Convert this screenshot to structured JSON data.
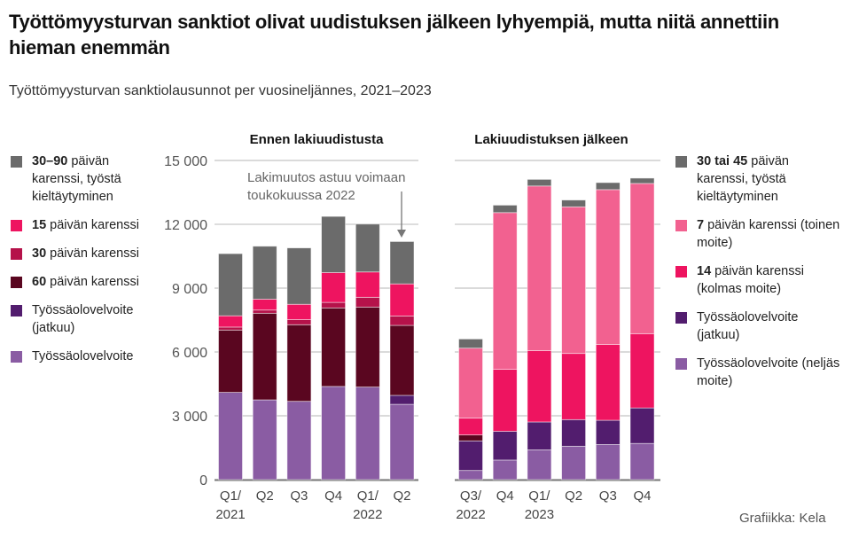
{
  "title": "Työttömyysturvan sanktiot olivat uudistuksen jälkeen lyhyempiä, mutta niitä annettiin hieman enemmän",
  "subtitle": "Työttömyysturvan sanktiolausunnot per vuosineljännes, 2021–2023",
  "credit": "Grafiikka: Kela",
  "annotation": [
    "Lakimuutos astuu voimaan",
    "toukokuussa 2022"
  ],
  "chart_data": [
    {
      "type": "bar",
      "stacked": true,
      "title": "Ennen lakiuudistusta",
      "categories": [
        [
          "Q1/",
          "2021"
        ],
        [
          "Q2",
          ""
        ],
        [
          "Q3",
          ""
        ],
        [
          "Q4",
          ""
        ],
        [
          "Q1/",
          "2022"
        ],
        [
          "Q2",
          ""
        ]
      ],
      "ylim": [
        0,
        15000
      ],
      "yticks": [
        0,
        3000,
        6000,
        9000,
        12000,
        15000
      ],
      "ytick_labels": [
        "0",
        "3 000",
        "6 000",
        "9 000",
        "12 000",
        "15 000"
      ],
      "grid": true,
      "legend_position": "left",
      "series": [
        {
          "name_bold": "",
          "name": "Työssäolovelvoite",
          "color": "#8a5ca3",
          "values": [
            4100,
            3750,
            3680,
            4380,
            4350,
            3540
          ]
        },
        {
          "name_bold": "",
          "name": "Työssäolovelvoite (jatkuu)",
          "color": "#521d6e",
          "values": [
            0,
            0,
            0,
            0,
            0,
            420
          ]
        },
        {
          "name_bold": "60",
          "name": "päivän karenssi",
          "color": "#5a0620",
          "values": [
            2930,
            4070,
            3600,
            3690,
            3760,
            3290
          ]
        },
        {
          "name_bold": "30",
          "name": "päivän karenssi",
          "color": "#b5124a",
          "values": [
            140,
            150,
            240,
            260,
            460,
            440
          ]
        },
        {
          "name_bold": "15",
          "name": "päivän karenssi",
          "color": "#ee1460",
          "values": [
            530,
            510,
            720,
            1400,
            1190,
            1510
          ]
        },
        {
          "name_bold": "30–90",
          "name": "päivän karenssi, työstä kieltäytyminen",
          "color": "#6b6b6b",
          "values": [
            2920,
            2490,
            2650,
            2640,
            2250,
            1990
          ]
        }
      ]
    },
    {
      "type": "bar",
      "stacked": true,
      "title": "Lakiuudistuksen jälkeen",
      "categories": [
        [
          "Q3/",
          "2022"
        ],
        [
          "Q4",
          ""
        ],
        [
          "Q1/",
          "2023"
        ],
        [
          "Q2",
          ""
        ],
        [
          "Q3",
          ""
        ],
        [
          "Q4",
          ""
        ]
      ],
      "ylim": [
        0,
        15000
      ],
      "grid": true,
      "legend_position": "right",
      "series": [
        {
          "name_bold": "",
          "name": "Työssäolovelvoite (neljäs moite)",
          "color": "#8a5ca3",
          "values": [
            430,
            920,
            1400,
            1570,
            1650,
            1700
          ]
        },
        {
          "name_bold": "",
          "name": "Työssäolovelvoite (jatkuu)",
          "color": "#521d6e",
          "values": [
            1390,
            1350,
            1310,
            1250,
            1140,
            1670
          ]
        },
        {
          "name_bold": "",
          "name": "60 päivän karenssi",
          "color": "#5a0620",
          "values": [
            280,
            0,
            0,
            0,
            0,
            0
          ],
          "in_legend": false
        },
        {
          "name_bold": "14",
          "name": "päivän karenssi (kolmas moite)",
          "color": "#ee1460",
          "values": [
            790,
            2920,
            3350,
            3110,
            3560,
            3490
          ]
        },
        {
          "name_bold": "7",
          "name": "päivän karenssi (toinen moite)",
          "color": "#f26190",
          "values": [
            3290,
            7360,
            7740,
            6890,
            7280,
            7060
          ]
        },
        {
          "name_bold": "30 tai 45",
          "name": "päivän karenssi, työstä kieltäytyminen",
          "color": "#6b6b6b",
          "values": [
            430,
            350,
            310,
            320,
            330,
            250
          ]
        }
      ]
    }
  ]
}
